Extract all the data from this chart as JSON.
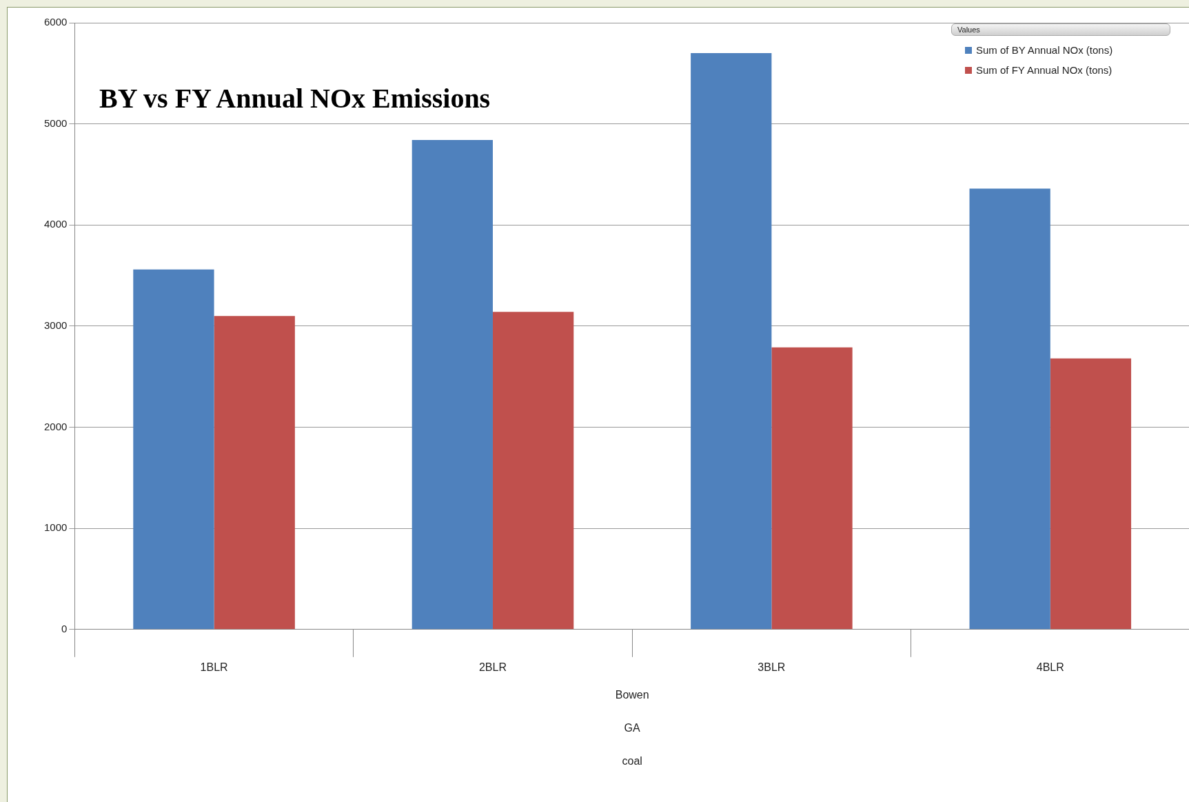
{
  "chart_data": {
    "type": "bar",
    "title": "BY vs FY Annual NOx Emissions",
    "legend_title": "Values",
    "categories": [
      "1BLR",
      "2BLR",
      "3BLR",
      "4BLR"
    ],
    "series": [
      {
        "name": "Sum of  BY Annual NOx (tons)",
        "color": "#4f81bd",
        "values": [
          3560,
          4840,
          5700,
          4360
        ]
      },
      {
        "name": "Sum of  FY Annual NOx (tons)",
        "color": "#c0504d",
        "values": [
          3100,
          3140,
          2790,
          2680
        ]
      }
    ],
    "annotations": [
      "Bowen",
      "GA",
      "coal"
    ],
    "ylim": [
      0,
      6000
    ],
    "yticks": [
      0,
      1000,
      2000,
      3000,
      4000,
      5000,
      6000
    ],
    "grid": "y",
    "legend": "top right"
  }
}
